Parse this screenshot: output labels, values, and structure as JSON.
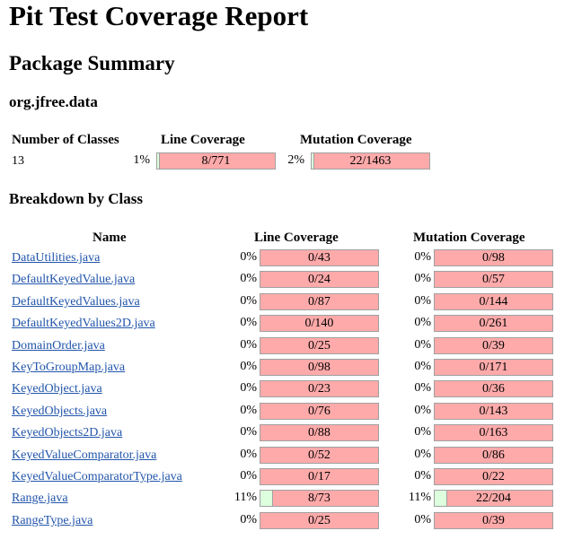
{
  "title": "Pit Test Coverage Report",
  "subtitle": "Package Summary",
  "package_name": "org.jfree.data",
  "summary": {
    "headers": {
      "classes": "Number of Classes",
      "line": "Line Coverage",
      "mutation": "Mutation Coverage"
    },
    "classes": "13",
    "line_pct": "1%",
    "line_ratio": "8/771",
    "line_fraction": 0.0104,
    "mutation_pct": "2%",
    "mutation_ratio": "22/1463",
    "mutation_fraction": 0.015
  },
  "breakdown_title": "Breakdown by Class",
  "breakdown_headers": {
    "name": "Name",
    "line": "Line Coverage",
    "mutation": "Mutation Coverage"
  },
  "rows": [
    {
      "name": "DataUtilities.java",
      "line_pct": "0%",
      "line_ratio": "0/43",
      "line_fraction": 0,
      "mut_pct": "0%",
      "mut_ratio": "0/98",
      "mut_fraction": 0
    },
    {
      "name": "DefaultKeyedValue.java",
      "line_pct": "0%",
      "line_ratio": "0/24",
      "line_fraction": 0,
      "mut_pct": "0%",
      "mut_ratio": "0/57",
      "mut_fraction": 0
    },
    {
      "name": "DefaultKeyedValues.java",
      "line_pct": "0%",
      "line_ratio": "0/87",
      "line_fraction": 0,
      "mut_pct": "0%",
      "mut_ratio": "0/144",
      "mut_fraction": 0
    },
    {
      "name": "DefaultKeyedValues2D.java",
      "line_pct": "0%",
      "line_ratio": "0/140",
      "line_fraction": 0,
      "mut_pct": "0%",
      "mut_ratio": "0/261",
      "mut_fraction": 0
    },
    {
      "name": "DomainOrder.java",
      "line_pct": "0%",
      "line_ratio": "0/25",
      "line_fraction": 0,
      "mut_pct": "0%",
      "mut_ratio": "0/39",
      "mut_fraction": 0
    },
    {
      "name": "KeyToGroupMap.java",
      "line_pct": "0%",
      "line_ratio": "0/98",
      "line_fraction": 0,
      "mut_pct": "0%",
      "mut_ratio": "0/171",
      "mut_fraction": 0
    },
    {
      "name": "KeyedObject.java",
      "line_pct": "0%",
      "line_ratio": "0/23",
      "line_fraction": 0,
      "mut_pct": "0%",
      "mut_ratio": "0/36",
      "mut_fraction": 0
    },
    {
      "name": "KeyedObjects.java",
      "line_pct": "0%",
      "line_ratio": "0/76",
      "line_fraction": 0,
      "mut_pct": "0%",
      "mut_ratio": "0/143",
      "mut_fraction": 0
    },
    {
      "name": "KeyedObjects2D.java",
      "line_pct": "0%",
      "line_ratio": "0/88",
      "line_fraction": 0,
      "mut_pct": "0%",
      "mut_ratio": "0/163",
      "mut_fraction": 0
    },
    {
      "name": "KeyedValueComparator.java",
      "line_pct": "0%",
      "line_ratio": "0/52",
      "line_fraction": 0,
      "mut_pct": "0%",
      "mut_ratio": "0/86",
      "mut_fraction": 0
    },
    {
      "name": "KeyedValueComparatorType.java",
      "line_pct": "0%",
      "line_ratio": "0/17",
      "line_fraction": 0,
      "mut_pct": "0%",
      "mut_ratio": "0/22",
      "mut_fraction": 0
    },
    {
      "name": "Range.java",
      "line_pct": "11%",
      "line_ratio": "8/73",
      "line_fraction": 0.11,
      "mut_pct": "11%",
      "mut_ratio": "22/204",
      "mut_fraction": 0.11
    },
    {
      "name": "RangeType.java",
      "line_pct": "0%",
      "line_ratio": "0/25",
      "line_fraction": 0,
      "mut_pct": "0%",
      "mut_ratio": "0/39",
      "mut_fraction": 0
    }
  ],
  "colors": {
    "covered": "#ddffdd",
    "uncovered": "#ffaaaa",
    "link": "#2255aa",
    "bar_border": "#a0a0a0"
  }
}
